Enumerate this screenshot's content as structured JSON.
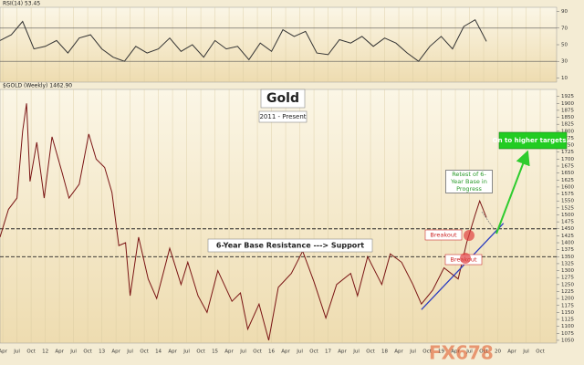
{
  "chart_data": [
    {
      "type": "line",
      "header": "RSI(14) 53.45",
      "color": "#333333",
      "x": [
        2011.2,
        2011.4,
        2011.6,
        2011.8,
        2012.0,
        2012.2,
        2012.4,
        2012.6,
        2012.8,
        2013.0,
        2013.2,
        2013.4,
        2013.6,
        2013.8,
        2014.0,
        2014.2,
        2014.4,
        2014.6,
        2014.8,
        2015.0,
        2015.2,
        2015.4,
        2015.6,
        2015.8,
        2016.0,
        2016.2,
        2016.4,
        2016.6,
        2016.8,
        2017.0,
        2017.2,
        2017.4,
        2017.6,
        2017.8,
        2018.0,
        2018.2,
        2018.4,
        2018.6,
        2018.8,
        2019.0,
        2019.2,
        2019.4,
        2019.6,
        2019.8
      ],
      "values": [
        55,
        62,
        78,
        45,
        48,
        55,
        40,
        58,
        62,
        45,
        35,
        30,
        48,
        40,
        45,
        58,
        42,
        50,
        35,
        55,
        45,
        48,
        32,
        52,
        42,
        68,
        60,
        66,
        40,
        38,
        56,
        52,
        60,
        48,
        58,
        52,
        40,
        30,
        48,
        60,
        45,
        72,
        80,
        54
      ],
      "ylim": [
        5,
        95
      ],
      "yticks": [
        10,
        30,
        50,
        70,
        90
      ],
      "levels": [
        30,
        70
      ]
    },
    {
      "type": "line",
      "header": "$GOLD (Weekly) 1462.90",
      "title": "Gold",
      "subtitle": "2011 - Present",
      "color": "#7a1414",
      "x": [
        2011.2,
        2011.35,
        2011.5,
        2011.6,
        2011.67,
        2011.73,
        2011.85,
        2011.98,
        2012.12,
        2012.3,
        2012.42,
        2012.6,
        2012.77,
        2012.9,
        2013.05,
        2013.18,
        2013.3,
        2013.42,
        2013.5,
        2013.65,
        2013.82,
        2013.97,
        2014.2,
        2014.4,
        2014.52,
        2014.7,
        2014.86,
        2015.05,
        2015.3,
        2015.45,
        2015.58,
        2015.78,
        2015.95,
        2016.12,
        2016.35,
        2016.55,
        2016.75,
        2016.96,
        2017.15,
        2017.4,
        2017.52,
        2017.7,
        2017.95,
        2018.1,
        2018.3,
        2018.5,
        2018.65,
        2018.85,
        2019.05,
        2019.3,
        2019.45,
        2019.6,
        2019.68,
        2019.8
      ],
      "values": [
        1420,
        1520,
        1560,
        1800,
        1900,
        1620,
        1760,
        1560,
        1780,
        1650,
        1560,
        1610,
        1790,
        1700,
        1670,
        1580,
        1390,
        1400,
        1210,
        1420,
        1270,
        1200,
        1380,
        1250,
        1330,
        1210,
        1150,
        1300,
        1190,
        1220,
        1090,
        1180,
        1050,
        1240,
        1290,
        1370,
        1260,
        1130,
        1250,
        1290,
        1210,
        1350,
        1250,
        1360,
        1330,
        1250,
        1180,
        1230,
        1310,
        1270,
        1400,
        1500,
        1550,
        1490
      ],
      "ylim": [
        1040,
        1950
      ],
      "yticks": [
        1050,
        1075,
        1100,
        1125,
        1150,
        1175,
        1200,
        1225,
        1250,
        1275,
        1300,
        1325,
        1350,
        1375,
        1400,
        1425,
        1450,
        1475,
        1500,
        1525,
        1550,
        1575,
        1600,
        1625,
        1650,
        1675,
        1700,
        1725,
        1750,
        1775,
        1800,
        1825,
        1850,
        1875,
        1900,
        1925
      ],
      "xlim": [
        2011.2,
        2021.04
      ],
      "xticks": [
        {
          "value": 2011.25,
          "label": "Apr"
        },
        {
          "value": 2011.5,
          "label": "Jul"
        },
        {
          "value": 2011.75,
          "label": "Oct"
        },
        {
          "value": 2012,
          "label": "12"
        },
        {
          "value": 2012.25,
          "label": "Apr"
        },
        {
          "value": 2012.5,
          "label": "Jul"
        },
        {
          "value": 2012.75,
          "label": "Oct"
        },
        {
          "value": 2013,
          "label": "13"
        },
        {
          "value": 2013.25,
          "label": "Apr"
        },
        {
          "value": 2013.5,
          "label": "Jul"
        },
        {
          "value": 2013.75,
          "label": "Oct"
        },
        {
          "value": 2014,
          "label": "14"
        },
        {
          "value": 2014.25,
          "label": "Apr"
        },
        {
          "value": 2014.5,
          "label": "Jul"
        },
        {
          "value": 2014.75,
          "label": "Oct"
        },
        {
          "value": 2015,
          "label": "15"
        },
        {
          "value": 2015.25,
          "label": "Apr"
        },
        {
          "value": 2015.5,
          "label": "Jul"
        },
        {
          "value": 2015.75,
          "label": "Oct"
        },
        {
          "value": 2016,
          "label": "16"
        },
        {
          "value": 2016.25,
          "label": "Apr"
        },
        {
          "value": 2016.5,
          "label": "Jul"
        },
        {
          "value": 2016.75,
          "label": "Oct"
        },
        {
          "value": 2017,
          "label": "17"
        },
        {
          "value": 2017.25,
          "label": "Apr"
        },
        {
          "value": 2017.5,
          "label": "Jul"
        },
        {
          "value": 2017.75,
          "label": "Oct"
        },
        {
          "value": 2018,
          "label": "18"
        },
        {
          "value": 2018.25,
          "label": "Apr"
        },
        {
          "value": 2018.5,
          "label": "Jul"
        },
        {
          "value": 2018.75,
          "label": "Oct"
        },
        {
          "value": 2019,
          "label": "19"
        },
        {
          "value": 2019.25,
          "label": "Apr"
        },
        {
          "value": 2019.5,
          "label": "Jul"
        },
        {
          "value": 2019.75,
          "label": "Oct"
        },
        {
          "value": 2020,
          "label": "20"
        },
        {
          "value": 2020.25,
          "label": "Apr"
        },
        {
          "value": 2020.5,
          "label": "Jul"
        },
        {
          "value": 2020.75,
          "label": "Oct"
        }
      ],
      "grid": true,
      "levels": [
        1450,
        1350
      ],
      "trendline": {
        "x": [
          2018.65,
          2020.1
        ],
        "y": [
          1160,
          1470
        ],
        "color": "#2a3cc0"
      },
      "annotations": [
        "6-Year Base Resistance ---> Support",
        "Breakout",
        "Breakout",
        "Retest of 6-Year Base in Progress",
        "On to higher targets..."
      ],
      "watermark": "FX678"
    }
  ]
}
